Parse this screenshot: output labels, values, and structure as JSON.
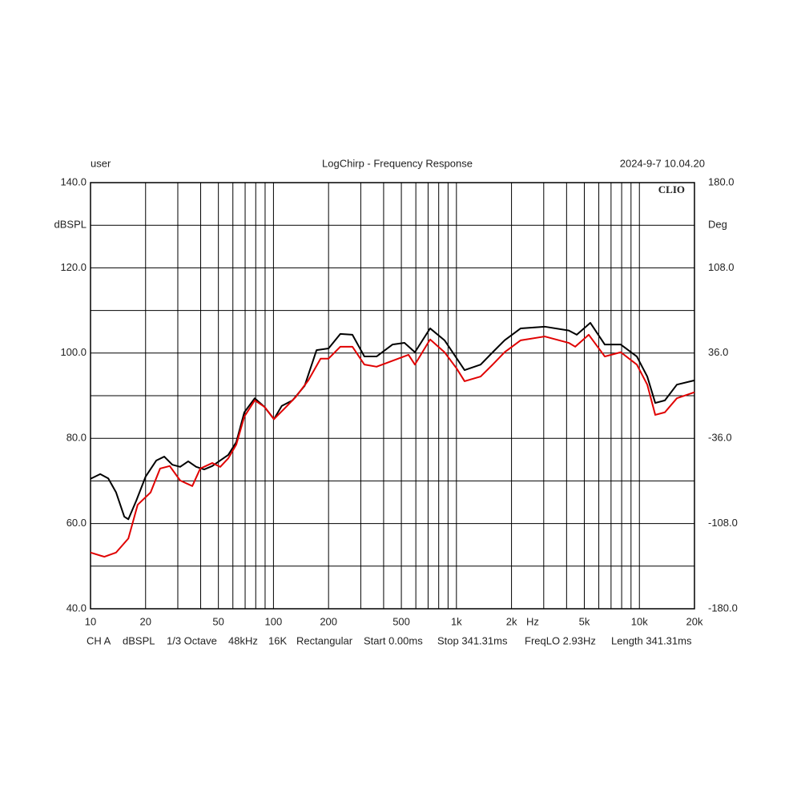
{
  "chart_data": {
    "type": "line",
    "title": "LogChirp - Frequency Response",
    "user": "user",
    "timestamp": "2024-9-7 10.04.20",
    "brand": "CLIO",
    "ylabel": "dBSPL",
    "y2label": "Deg",
    "xunit": "Hz",
    "log_x": true,
    "grid": true,
    "xlim": [
      10,
      20000
    ],
    "xticks": [
      10,
      20,
      50,
      100,
      200,
      500,
      {
        "value": 1000,
        "label": "1k"
      },
      {
        "value": 2000,
        "label": "2k"
      },
      {
        "value": 5000,
        "label": "5k"
      },
      {
        "value": 10000,
        "label": "10k"
      },
      {
        "value": 20000,
        "label": "20k"
      }
    ],
    "x_minor_ticks": [
      30,
      40,
      60,
      70,
      80,
      90,
      300,
      400,
      600,
      700,
      800,
      900,
      3000,
      4000,
      6000,
      7000,
      8000,
      9000
    ],
    "ylim": [
      40,
      140
    ],
    "yticks": [
      {
        "value": 40,
        "label": "40.0"
      },
      {
        "value": 60,
        "label": "60.0"
      },
      {
        "value": 80,
        "label": "80.0"
      },
      {
        "value": 100,
        "label": "100.0"
      },
      {
        "value": 120,
        "label": "120.0"
      },
      {
        "value": 140,
        "label": "140.0"
      }
    ],
    "y_minor_ticks": [
      50,
      70,
      90,
      110,
      130
    ],
    "y2lim": [
      -180,
      180
    ],
    "y2ticks": [
      {
        "value": -180,
        "label": "-180.0"
      },
      {
        "value": -108,
        "label": "-108.0"
      },
      {
        "value": -36,
        "label": "-36.0"
      },
      {
        "value": 36,
        "label": "36.0"
      },
      {
        "value": 108,
        "label": "108.0"
      },
      {
        "value": 180,
        "label": "180.0"
      }
    ],
    "series": [
      {
        "color": "#000000",
        "x": [
          10,
          11.3,
          12.5,
          13.8,
          15.3,
          16.1,
          17.8,
          20,
          22.9,
          25.3,
          28,
          30.9,
          34.2,
          37.8,
          41.8,
          46.3,
          51.2,
          56.6,
          62.6,
          69.3,
          79,
          89.2,
          100.6,
          111,
          127,
          148,
          172,
          200,
          232,
          270,
          314,
          366,
          447,
          520,
          593,
          718,
          861,
          1002,
          1108,
          1356,
          1578,
          1834,
          2245,
          3038,
          4111,
          4546,
          5395,
          6471,
          7914,
          9683,
          11040,
          12210,
          13780,
          16030,
          20000
        ],
        "values": [
          70.5,
          71.6,
          70.6,
          67.3,
          61.6,
          61,
          65.4,
          71,
          74.8,
          75.7,
          73.8,
          73.3,
          74.6,
          73.3,
          72.7,
          73.5,
          74.8,
          76.1,
          79.1,
          86.1,
          89.4,
          87.4,
          84.5,
          87.6,
          88.9,
          92.3,
          100.7,
          101.1,
          104.5,
          104.3,
          99.2,
          99.2,
          102,
          102.4,
          100.2,
          105.8,
          103,
          98.8,
          96,
          97.3,
          100.2,
          103,
          105.8,
          106.2,
          105.3,
          104.3,
          107.1,
          102,
          102,
          99.2,
          94.5,
          88.3,
          88.9,
          92.6,
          93.6
        ]
      },
      {
        "color": "#e00000",
        "x": [
          10,
          11.9,
          13.8,
          16.1,
          18.1,
          21.3,
          24,
          27.1,
          30.9,
          36,
          39.8,
          46.3,
          51.2,
          56.6,
          62.6,
          69.3,
          79,
          89.2,
          100.6,
          115,
          133,
          155,
          181,
          200,
          232,
          270,
          314,
          366,
          447,
          547,
          593,
          718,
          861,
          1002,
          1108,
          1356,
          1578,
          1834,
          2245,
          3038,
          4111,
          4457,
          5288,
          6471,
          7914,
          9683,
          11040,
          12210,
          13780,
          16030,
          20000
        ],
        "values": [
          53.2,
          52.2,
          53.2,
          56.5,
          64.4,
          67.3,
          72.9,
          73.5,
          70.1,
          68.8,
          72.9,
          74.2,
          73.3,
          75.3,
          78.5,
          85.1,
          88.9,
          87.4,
          84.5,
          87,
          89.8,
          93.6,
          98.7,
          98.7,
          101.5,
          101.5,
          97.3,
          96.8,
          98.2,
          99.6,
          97.3,
          103.2,
          100.2,
          96.4,
          93.4,
          94.5,
          97.3,
          100.2,
          103,
          103.9,
          102.4,
          101.5,
          104.3,
          99.2,
          100.2,
          97.3,
          92.6,
          85.5,
          86.1,
          89.4,
          90.8
        ]
      }
    ],
    "footer": [
      "CH A",
      "dBSPL",
      "1/3 Octave",
      "48kHz",
      "16K",
      "Rectangular",
      "Start 0.00ms",
      "Stop 341.31ms",
      "FreqLO 2.93Hz",
      "Length 341.31ms"
    ]
  }
}
